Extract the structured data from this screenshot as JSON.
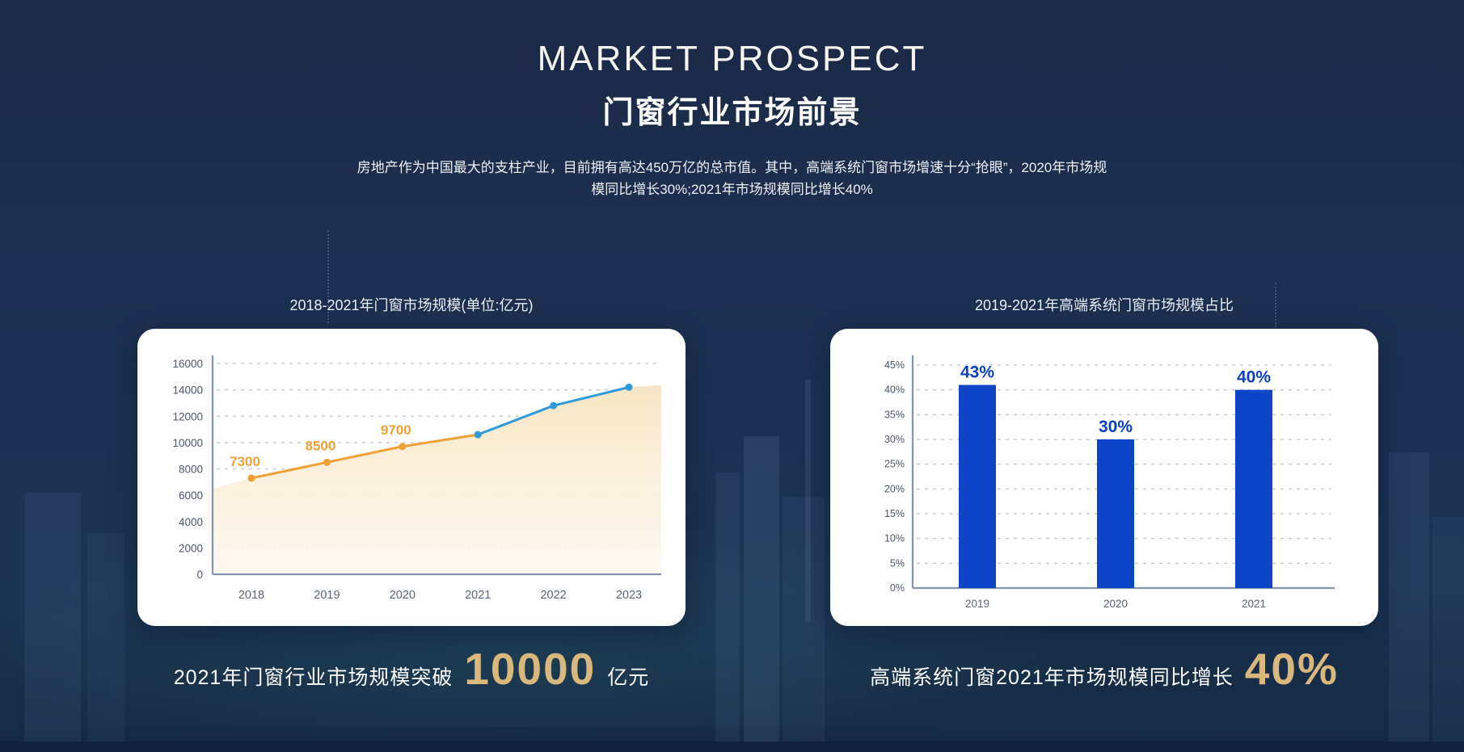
{
  "header": {
    "title_en": "MARKET PROSPECT",
    "title_zh": "门窗行业市场前景",
    "desc_line1": "房地产作为中国最大的支柱产业，目前拥有高达450万亿的总市值。其中，高端系统门窗市场增速十分“抢眼”，2020年市场规",
    "desc_line2": "模同比增长30%;2021年市场规模同比增长40%"
  },
  "captions": {
    "left": {
      "prefix": "2021年门窗行业市场规模突破",
      "value": "10000",
      "suffix": "亿元"
    },
    "right": {
      "prefix": "高端系统门窗2021年市场规模同比增长",
      "value": "40%"
    }
  },
  "colors": {
    "gold": "#D9B87E",
    "line_orange": "#EFA136",
    "line_blue": "#2F9CD8",
    "bar_blue": "#0D45C9",
    "area_cream": "#F7E5C2"
  },
  "chart_data": [
    {
      "type": "area",
      "title": "2018-2021年门窗市场规模(单位:亿元)",
      "x": [
        2018,
        2019,
        2020,
        2021,
        2022,
        2023
      ],
      "series": [
        {
          "name": "2018-2021",
          "x": [
            2018,
            2019,
            2020,
            2021
          ],
          "values": [
            7300,
            8500,
            9700,
            10600
          ],
          "color": "#EFA136"
        },
        {
          "name": "2021-2023",
          "x": [
            2021,
            2022,
            2023
          ],
          "values": [
            10600,
            12800,
            14200
          ],
          "color": "#2F9CD8"
        }
      ],
      "point_labels": [
        {
          "x": 2018,
          "text": "7300"
        },
        {
          "x": 2019,
          "text": "8500"
        },
        {
          "x": 2020,
          "text": "9700"
        }
      ],
      "ylim": [
        0,
        16000
      ],
      "ytick_step": 2000,
      "edge_values": {
        "left": 6500,
        "right": 14350
      },
      "grid": "dashed",
      "legend": "none"
    },
    {
      "type": "bar",
      "title": "2019-2021年高端系统门窗市场规模占比",
      "categories": [
        "2019",
        "2020",
        "2021"
      ],
      "values": [
        43,
        30,
        40
      ],
      "labels": [
        "43%",
        "30%",
        "40%"
      ],
      "bar_display_heights": [
        41,
        30,
        40
      ],
      "ylim": [
        0,
        45
      ],
      "ytick_step": 5,
      "bar_color": "#0D45C9",
      "label_color": "#0B3FC4",
      "grid": "dashed",
      "legend": "none"
    }
  ]
}
